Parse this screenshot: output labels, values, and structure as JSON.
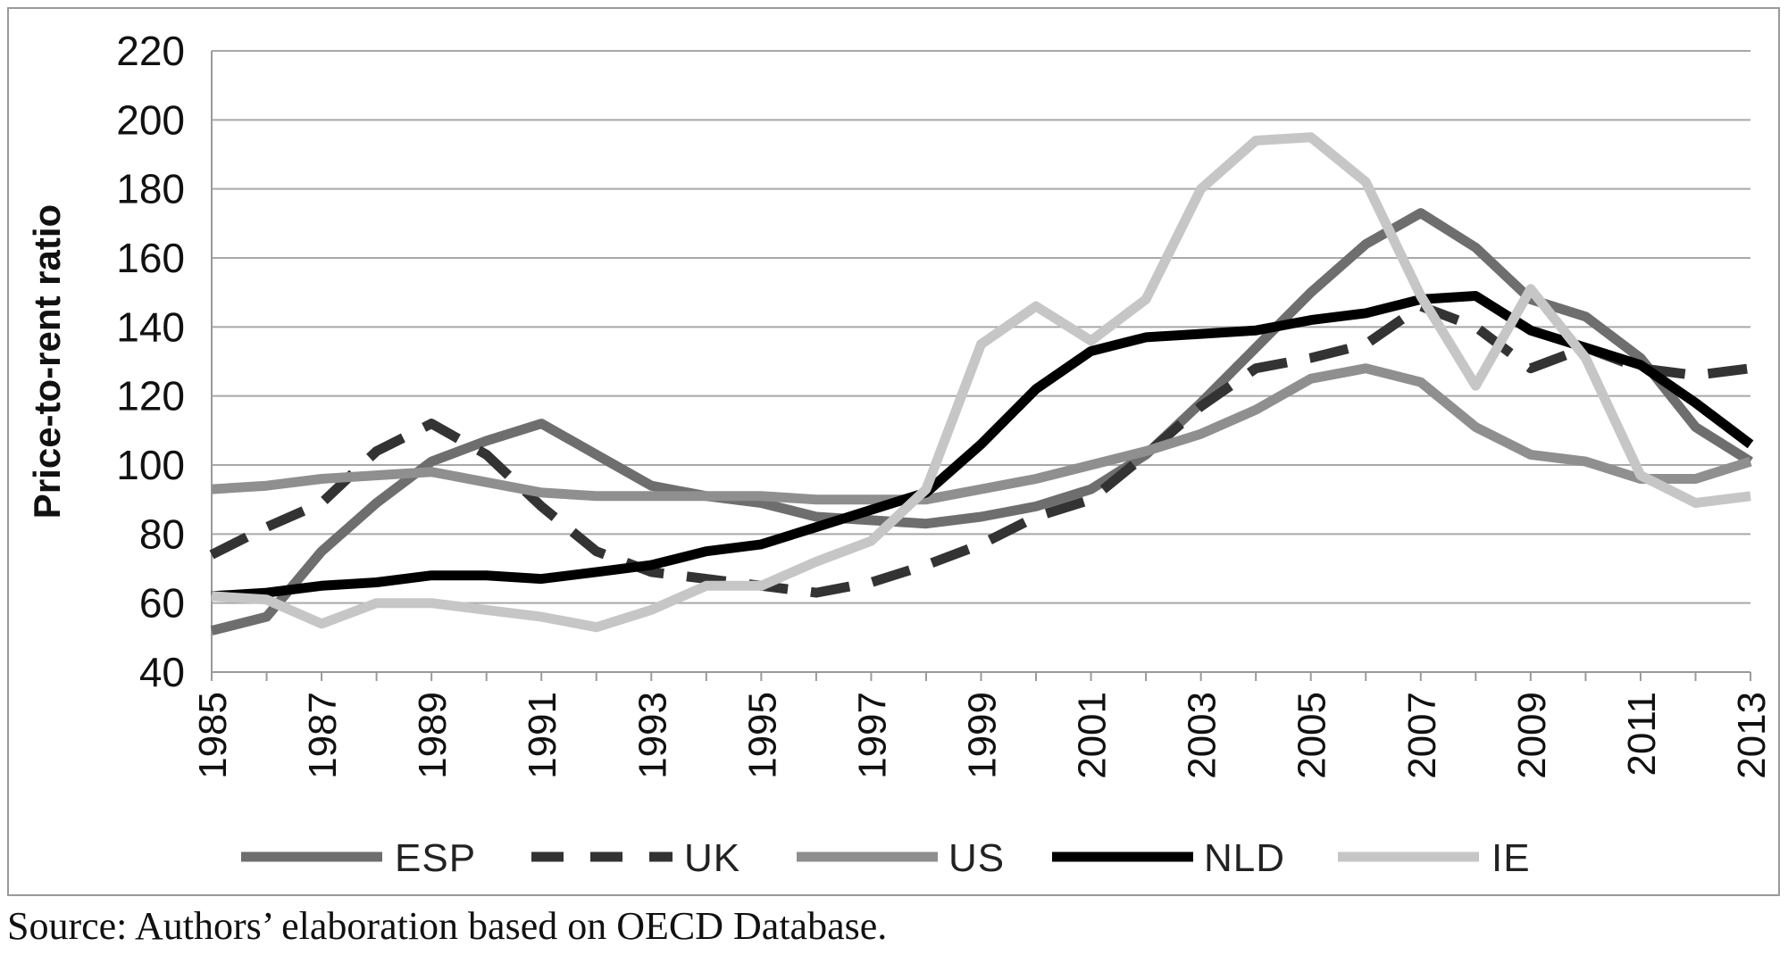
{
  "chart_data": {
    "type": "line",
    "ylabel": "Price-to-rent ratio",
    "xlabel": "",
    "ylim": [
      40,
      220
    ],
    "yticks": [
      "220",
      "200",
      "180",
      "160",
      "140",
      "120",
      "100",
      "80",
      "60",
      "40"
    ],
    "x": [
      1985,
      1986,
      1987,
      1988,
      1989,
      1990,
      1991,
      1992,
      1993,
      1994,
      1995,
      1996,
      1997,
      1998,
      1999,
      2000,
      2001,
      2002,
      2003,
      2004,
      2005,
      2006,
      2007,
      2008,
      2009,
      2010,
      2011,
      2012,
      2013
    ],
    "xtick_labels": [
      "1985",
      "1987",
      "1989",
      "1991",
      "1993",
      "1995",
      "1997",
      "1999",
      "2001",
      "2003",
      "2005",
      "2007",
      "2009",
      "2011",
      "2013"
    ],
    "grid": true,
    "legend_position": "bottom",
    "series": [
      {
        "name": "ESP",
        "color": "#6e6e6e",
        "dash": "solid",
        "values": [
          52,
          56,
          75,
          89,
          101,
          107,
          112,
          103,
          94,
          91,
          89,
          85,
          84,
          83,
          85,
          88,
          93,
          103,
          118,
          134,
          150,
          164,
          173,
          163,
          148,
          143,
          131,
          111,
          101
        ]
      },
      {
        "name": "UK",
        "color": "#333333",
        "dash": "dashed",
        "values": [
          74,
          82,
          89,
          104,
          112,
          103,
          88,
          75,
          69,
          67,
          65,
          63,
          66,
          71,
          77,
          85,
          90,
          103,
          117,
          128,
          131,
          135,
          146,
          140,
          128,
          134,
          128,
          126,
          128
        ]
      },
      {
        "name": "US",
        "color": "#8f8f8f",
        "dash": "solid",
        "values": [
          93,
          94,
          96,
          97,
          98,
          95,
          92,
          91,
          91,
          91,
          91,
          90,
          90,
          90,
          93,
          96,
          100,
          104,
          109,
          116,
          125,
          128,
          124,
          111,
          103,
          101,
          96,
          96,
          101
        ]
      },
      {
        "name": "NLD",
        "color": "#000000",
        "dash": "solid",
        "values": [
          62,
          63,
          65,
          66,
          68,
          68,
          67,
          69,
          71,
          75,
          77,
          82,
          87,
          92,
          106,
          122,
          133,
          137,
          138,
          139,
          142,
          144,
          148,
          149,
          139,
          134,
          129,
          118,
          106
        ]
      },
      {
        "name": "IE",
        "color": "#c6c6c6",
        "dash": "solid",
        "values": [
          62,
          61,
          54,
          60,
          60,
          58,
          56,
          53,
          58,
          65,
          65,
          72,
          78,
          93,
          135,
          146,
          136,
          148,
          180,
          194,
          195,
          182,
          149,
          123,
          151,
          131,
          97,
          89,
          91
        ]
      }
    ]
  },
  "source_note": "Source: Authors’ elaboration based on OECD Database."
}
